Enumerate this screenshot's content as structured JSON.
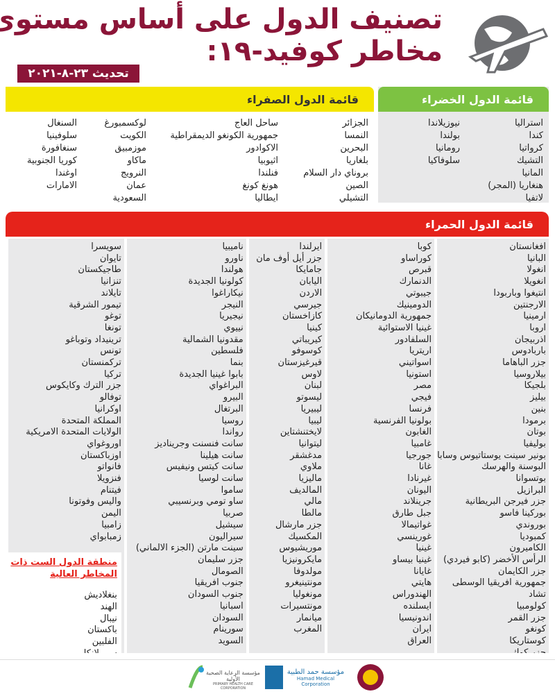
{
  "header": {
    "title_line1": "تصنيف الدول على أساس مستوى",
    "title_line2": "مخاطر كوفيد-١٩:",
    "update": "تحديث ٢٣-٨-٢٠٢١"
  },
  "green": {
    "title": "قائمة الدول الخضراء",
    "columns": [
      [
        "استراليا",
        "كندا",
        "كرواتيا",
        "التشيك",
        "المانيا",
        "هنغاريا (المجر)",
        "لاتفيا"
      ],
      [
        "نيوزيلاندا",
        "بولندا",
        "رومانيا",
        "سلوفاكيا"
      ]
    ]
  },
  "yellow": {
    "title": "قائمة الدول الصفراء",
    "columns": [
      [
        "الجزائر",
        "النمسا",
        "البحرين",
        "بلغاريا",
        "بروناي دار السلام",
        "الصين",
        "التشيلي"
      ],
      [
        "ساحل العاج",
        "جمهورية الكونغو الديمقراطية",
        "الاكوادور",
        "اثيوبيا",
        "فنلندا",
        "هونغ كونغ",
        "ايطاليا"
      ],
      [
        "لوكسمبورغ",
        "الكويت",
        "موزمبيق",
        "ماكاو",
        "النرويج",
        "عمان",
        "السعودية"
      ],
      [
        "السنغال",
        "سلوفينيا",
        "سنغافورة",
        "كوريا الجنوبية",
        "اوغندا",
        "الامارات"
      ]
    ]
  },
  "red": {
    "title": "قائمة الدول الحمراء",
    "columns": [
      [
        "افغانستان",
        "البانيا",
        "انغولا",
        "انغويلا",
        "انتيغوا وباربودا",
        "الارجنتين",
        "ارمينيا",
        "اروبا",
        "اذربيجان",
        "باربادوس",
        "جزر الباهاما",
        "بيلاروسيا",
        "بلجيكا",
        "بيليز",
        "بنين",
        "برمودا",
        "بوتان",
        "بوليفيا",
        "بونير سينت يوستاتيوس وسابا",
        "البوسنة والهرسك",
        "بوتسوانا",
        "البرازيل",
        "جزر فيرجن البريطانية",
        "بوركينا فاسو",
        "بوروندي",
        "كمبوديا",
        "الكاميرون",
        "الرأس الأخضر (كابو فيردي)",
        "جزر الكايمان",
        "جمهورية افريقيا الوسطى",
        "تشاد",
        "كولومبيا",
        "جزر القمر",
        "كونغو",
        "كوستاريكا",
        "جزر كوك"
      ],
      [
        "كوبا",
        "كوراساو",
        "قبرص",
        "الدنمارك",
        "جيبوتي",
        "الدومينيك",
        "جمهورية الدومانيكان",
        "غينيا الاستوائية",
        "السلفادور",
        "اريتريا",
        "اسواتيني",
        "استونيا",
        "مصر",
        "فيجي",
        "فرنسا",
        "بولونيا الفرنسية",
        "الغابون",
        "غامبيا",
        "جورجيا",
        "غانا",
        "غيرنادا",
        "اليونان",
        "جرينلاند",
        "جبل طارق",
        "غواتيمالا",
        "غورينسي",
        "غينيا",
        "غينيا بيساو",
        "غايانا",
        "هايتي",
        "الهندوراس",
        "ايسلنده",
        "اندونيسيا",
        "ايران",
        "العراق"
      ],
      [
        "ايرلندا",
        "جزر أيل أوف مان",
        "جامايكا",
        "اليابان",
        "الاردن",
        "جيرسي",
        "كازاخستان",
        "كينيا",
        "كيريباتي",
        "كوسوفو",
        "قيرغيزستان",
        "لاوس",
        "لبنان",
        "ليسوتو",
        "ليبيريا",
        "ليبيا",
        "لايختنشتاين",
        "ليتوانيا",
        "مدغشقر",
        "ملاوي",
        "ماليزيا",
        "المالديف",
        "مالي",
        "مالطا",
        "جزر مارشال",
        "المكسيك",
        "موريشيوس",
        "مايكرونيزيا",
        "مولدوفا",
        "مونتينيغرو",
        "مونغوليا",
        "مونتسيرات",
        "ميانمار",
        "المغرب"
      ],
      [
        "ناميبيا",
        "ناورو",
        "هولندا",
        "كولونيا الجديدة",
        "نيكاراغوا",
        "النيجر",
        "نيجيريا",
        "نييوي",
        "مقدونيا الشمالية",
        "فلسطين",
        "بنما",
        "بابوا غينيا الجديدة",
        "البراغواي",
        "البيرو",
        "البرتغال",
        "روسيا",
        "رواندا",
        "سانت فنسنت وجريناديز",
        "سانت هيلينا",
        "سانت كيتس ونيفيس",
        "سانت لوسيا",
        "ساموا",
        "ساو تومي وبرنسيبي",
        "صربيا",
        "سيشيل",
        "سيراليون",
        "سينت مارتن (الجزء الالماني)",
        "جزر سليمان",
        "الصومال",
        "جنوب افريقيا",
        "جنوب السودان",
        "اسبانيا",
        "السودان",
        "سورينام",
        "السويد"
      ],
      [
        "سويسرا",
        "تايوان",
        "طاجيكستان",
        "تنزانيا",
        "تايلاند",
        "تيمور الشرقية",
        "توغو",
        "تونغا",
        "ترينيداد وتوباغو",
        "تونس",
        "تركمنستان",
        "تركيا",
        "جزر الترك وكايكوس",
        "توفالو",
        "اوكرانيا",
        "المملكة المتحدة",
        "الولايات المتحدة الامريكية",
        "اوروغواي",
        "اوزباكستان",
        "فانواتو",
        "فنزويلا",
        "فيتنام",
        "واليس وفوتونا",
        "اليمن",
        "زامبيا",
        "زمبابواي"
      ]
    ]
  },
  "high_risk": {
    "title": "منطقة الدول الست ذات المخاطر العالية",
    "items": [
      "بنغلاديش",
      "الهند",
      "نيبال",
      "باكستان",
      "الفلبين",
      "سيريلانكا"
    ]
  },
  "footer": {
    "phcc_ar": "مؤسسة الرعاية الصحية الأولية",
    "phcc_en": "PRIMARY HEALTH CARE CORPORATION",
    "hmc_ar": "مؤسسة حمد الطبية",
    "hmc_en": "Hamad Medical Corporation"
  }
}
